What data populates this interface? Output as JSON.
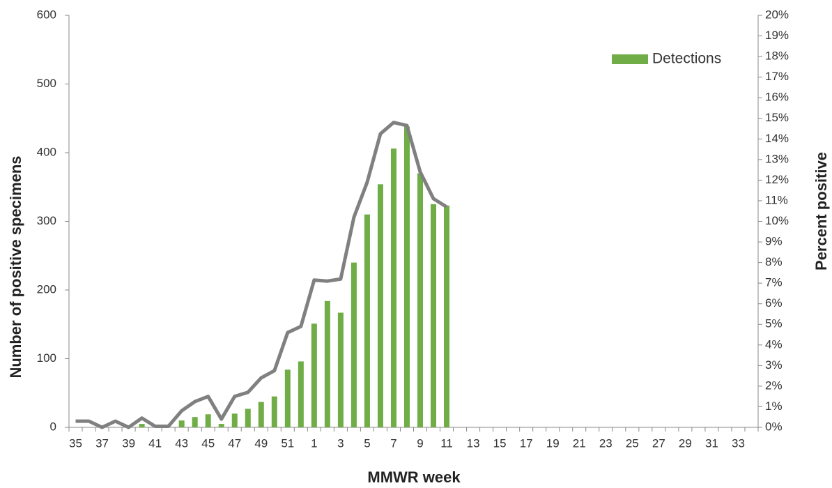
{
  "chart_data": {
    "type": "bar_line",
    "categories": [
      "35",
      null,
      "37",
      null,
      "39",
      null,
      "41",
      null,
      "43",
      null,
      "45",
      null,
      "47",
      null,
      "49",
      null,
      "51",
      null,
      "1",
      null,
      "3",
      null,
      "5",
      null,
      "7",
      null,
      "9",
      null,
      "11",
      null,
      "13",
      null,
      "15",
      null,
      "17",
      null,
      "19",
      null,
      "21",
      null,
      "23",
      null,
      "25",
      null,
      "27",
      null,
      "29",
      null,
      "31",
      null,
      "33",
      null
    ],
    "series": [
      {
        "name": "Detections",
        "type": "bar",
        "color": "#70ad47",
        "values": [
          0,
          0,
          0,
          0,
          0,
          5,
          0,
          0,
          10,
          15,
          19,
          5,
          20,
          27,
          37,
          45,
          84,
          96,
          151,
          184,
          167,
          240,
          310,
          354,
          406,
          438,
          370,
          325,
          323,
          null,
          null,
          null,
          null,
          null,
          null,
          null,
          null,
          null,
          null,
          null,
          null,
          null,
          null,
          null,
          null,
          null,
          null,
          null,
          null,
          null,
          null,
          null
        ]
      },
      {
        "type": "line",
        "axis": "y2",
        "color": "#808080",
        "values": [
          0.3,
          0.3,
          0,
          0.3,
          0,
          0.45,
          0.05,
          0.05,
          0.8,
          1.25,
          1.5,
          0.4,
          1.5,
          1.7,
          2.4,
          2.75,
          4.6,
          4.9,
          7.15,
          7.1,
          7.2,
          10.2,
          11.9,
          14.25,
          14.8,
          14.65,
          12.4,
          11.1,
          10.7,
          null,
          null,
          null,
          null,
          null,
          null,
          null,
          null,
          null,
          null,
          null,
          null,
          null,
          null,
          null,
          null,
          null,
          null,
          null,
          null,
          null,
          null,
          null
        ]
      }
    ],
    "xlabel": "MMWR week",
    "ylabel": "Number of positive specimens",
    "y2label": "Percent positive",
    "ylim": [
      0,
      600
    ],
    "yticks": [
      0,
      100,
      200,
      300,
      400,
      500,
      600
    ],
    "y2lim": [
      0,
      20
    ],
    "y2ticks": [
      {
        "value": 0,
        "label": "0%"
      },
      {
        "value": 1,
        "label": "1%"
      },
      {
        "value": 2,
        "label": "2%"
      },
      {
        "value": 3,
        "label": "3%"
      },
      {
        "value": 4,
        "label": "4%"
      },
      {
        "value": 5,
        "label": "5%"
      },
      {
        "value": 6,
        "label": "6%"
      },
      {
        "value": 7,
        "label": "7%"
      },
      {
        "value": 8,
        "label": "8%"
      },
      {
        "value": 9,
        "label": "9%"
      },
      {
        "value": 10,
        "label": "10%"
      },
      {
        "value": 11,
        "label": "11%"
      },
      {
        "value": 12,
        "label": "12%"
      },
      {
        "value": 13,
        "label": "13%"
      },
      {
        "value": 14,
        "label": "14%"
      },
      {
        "value": 15,
        "label": "15%"
      },
      {
        "value": 16,
        "label": "16%"
      },
      {
        "value": 17,
        "label": "17%"
      },
      {
        "value": 18,
        "label": "18%"
      },
      {
        "value": 19,
        "label": "19%"
      },
      {
        "value": 20,
        "label": "20%"
      }
    ],
    "legend": "upper right"
  }
}
